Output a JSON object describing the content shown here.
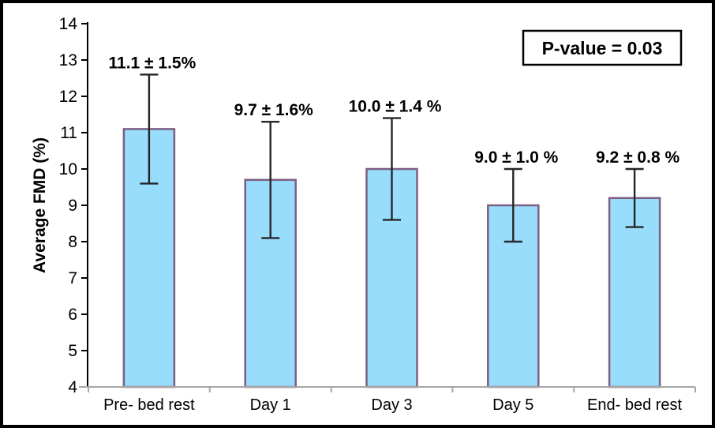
{
  "window": {
    "background": "#FFFFFF",
    "frame_border_color": "#000000"
  },
  "chart_data": {
    "type": "bar",
    "title": "",
    "xlabel": "",
    "ylabel": "Average FMD (%)",
    "ylim": [
      4,
      14
    ],
    "ytick_step": 1,
    "grid": false,
    "legend": null,
    "categories": [
      "Pre- bed rest",
      "Day 1",
      "Day 3",
      "Day 5",
      "End- bed rest"
    ],
    "series": [
      {
        "name": "Average FMD",
        "values": [
          11.1,
          9.7,
          10.0,
          9.0,
          9.2
        ],
        "errors": [
          1.5,
          1.6,
          1.4,
          1.0,
          0.8
        ]
      }
    ],
    "value_labels": [
      "11.1 ± 1.5%",
      "9.7 ± 1.6%",
      "10.0 ± 1.4 %",
      "9.0 ± 1.0 %",
      "9.2 ± 0.8 %"
    ],
    "annotation": {
      "text": "P-value = 0.03"
    },
    "colors": {
      "bar_fill": "#99DDFC",
      "bar_stroke": "#7D5F82",
      "error_bar": "#262626",
      "y_axis": "#000000",
      "x_axis": "#A6A6A6",
      "text": "#000000",
      "annotation_border": "#000000",
      "annotation_fill": "#FFFFFF"
    }
  }
}
